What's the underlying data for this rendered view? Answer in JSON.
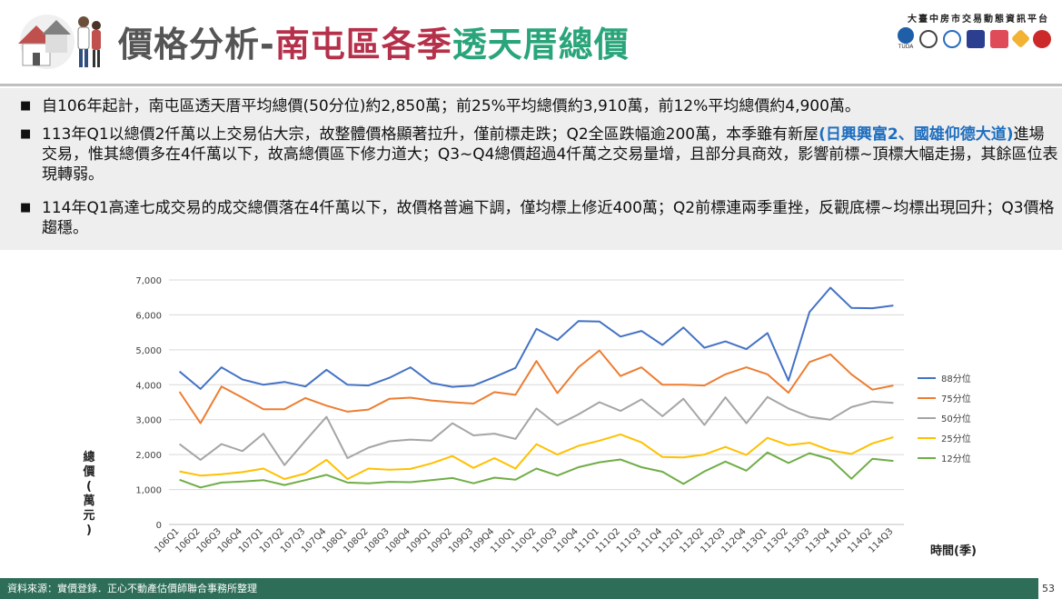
{
  "header": {
    "title_part1": "價格分析-",
    "title_part2": "南屯區各季",
    "title_part3": "透天厝總價",
    "platform_name": "大臺中房市交易動態資訊平台",
    "logo_caption": "TUDA"
  },
  "notes": [
    {
      "bullet": "■",
      "text": "自106年起計，南屯區透天厝平均總價(50分位)約2,850萬；前25%平均總價約3,910萬，前12%平均總價約4,900萬。"
    },
    {
      "bullet": "■",
      "text_before": "113年Q1以總價2仟萬以上交易佔大宗，故整體價格顯著拉升，僅前標走跌；Q2全區跌幅逾200萬，本季雖有新屋",
      "highlight": "(日興興富2、國雄仰德大道)",
      "text_after": "進場交易，惟其總價多在4仟萬以下，故高總價區下修力道大；Q3~Q4總價超過4仟萬之交易量增，且部分具商效，影響前標~頂標大幅走揚，其餘區位表現轉弱。"
    },
    {
      "bullet": "■",
      "text": "114年Q1高達七成交易的成交總價落在4仟萬以下，故價格普遍下調，僅均標上修近400萬；Q2前標連兩季重挫，反觀底標~均標出現回升；Q3價格趨穩。"
    }
  ],
  "footer": {
    "source": "資料來源：實價登錄．正心不動產估價師聯合事務所整理",
    "page": "53"
  },
  "chart_data": {
    "type": "line",
    "ylabel": "總價(萬元)",
    "xlabel": "時間(季)",
    "ylim": [
      0,
      7000
    ],
    "yticks": [
      0,
      1000,
      2000,
      3000,
      4000,
      5000,
      6000,
      7000
    ],
    "ytick_labels": [
      "0",
      "1,000",
      "2,000",
      "3,000",
      "4,000",
      "5,000",
      "6,000",
      "7,000"
    ],
    "grid": true,
    "legend_position": "right",
    "categories": [
      "106Q1",
      "106Q2",
      "106Q3",
      "106Q4",
      "107Q1",
      "107Q2",
      "107Q3",
      "107Q4",
      "108Q1",
      "108Q2",
      "108Q3",
      "108Q4",
      "109Q1",
      "109Q2",
      "109Q3",
      "109Q4",
      "110Q1",
      "110Q2",
      "110Q3",
      "110Q4",
      "111Q1",
      "111Q2",
      "111Q3",
      "111Q4",
      "112Q1",
      "112Q2",
      "112Q3",
      "112Q4",
      "113Q1",
      "113Q2",
      "113Q3",
      "113Q4",
      "114Q1",
      "114Q2",
      "114Q3"
    ],
    "series": [
      {
        "name": "88分位",
        "color": "#4472c4",
        "values": [
          4380,
          3880,
          4500,
          4150,
          4000,
          4080,
          3950,
          4430,
          4000,
          3980,
          4200,
          4500,
          4050,
          3940,
          3980,
          4220,
          4480,
          5600,
          5280,
          5820,
          5810,
          5380,
          5540,
          5140,
          5640,
          5060,
          5240,
          5020,
          5480,
          4120,
          6080,
          6780,
          6200,
          6190,
          6270
        ]
      },
      {
        "name": "75分位",
        "color": "#ed7d31",
        "values": [
          3800,
          2900,
          3950,
          3630,
          3300,
          3300,
          3620,
          3400,
          3230,
          3290,
          3600,
          3630,
          3550,
          3500,
          3460,
          3790,
          3710,
          4680,
          3760,
          4500,
          4980,
          4250,
          4500,
          4000,
          4000,
          3980,
          4300,
          4500,
          4300,
          3770,
          4650,
          4870,
          4300,
          3860,
          3980
        ]
      },
      {
        "name": "50分位",
        "color": "#a5a5a5",
        "values": [
          2300,
          1850,
          2300,
          2100,
          2600,
          1700,
          2400,
          3080,
          1900,
          2200,
          2380,
          2430,
          2400,
          2900,
          2550,
          2600,
          2450,
          3320,
          2850,
          3150,
          3500,
          3250,
          3580,
          3100,
          3600,
          2850,
          3640,
          2900,
          3650,
          3320,
          3080,
          3000,
          3360,
          3520,
          3480
        ]
      },
      {
        "name": "25分位",
        "color": "#ffc000",
        "values": [
          1520,
          1400,
          1440,
          1500,
          1600,
          1300,
          1460,
          1850,
          1300,
          1600,
          1570,
          1590,
          1750,
          1960,
          1620,
          1900,
          1600,
          2300,
          2000,
          2250,
          2400,
          2580,
          2350,
          1930,
          1920,
          2000,
          2220,
          1990,
          2480,
          2270,
          2340,
          2120,
          2020,
          2320,
          2500
        ]
      },
      {
        "name": "12分位",
        "color": "#70ad47",
        "values": [
          1280,
          1060,
          1200,
          1230,
          1270,
          1130,
          1270,
          1420,
          1200,
          1180,
          1220,
          1210,
          1270,
          1330,
          1180,
          1340,
          1280,
          1600,
          1400,
          1640,
          1780,
          1860,
          1640,
          1510,
          1160,
          1520,
          1800,
          1540,
          2060,
          1760,
          2040,
          1870,
          1310,
          1880,
          1820
        ]
      }
    ]
  }
}
